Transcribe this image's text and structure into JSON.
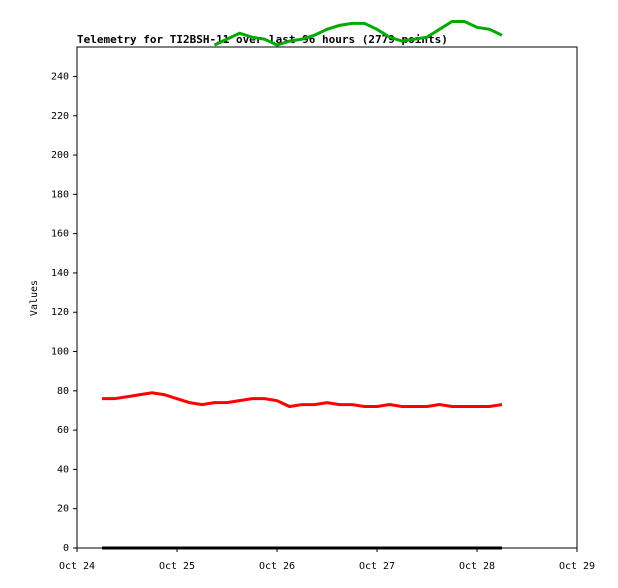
{
  "chart_data": {
    "type": "line",
    "title": "Telemetry for TI2BSH-11 over last 96 hours (2779 points)",
    "y_label": "Values",
    "x": [
      0.25,
      0.375,
      0.5,
      0.625,
      0.75,
      0.875,
      1.0,
      1.125,
      1.25,
      1.375,
      1.5,
      1.625,
      1.75,
      1.875,
      2.0,
      2.125,
      2.25,
      2.375,
      2.5,
      2.625,
      2.75,
      2.875,
      3.0,
      3.125,
      3.25,
      3.375,
      3.5,
      3.625,
      3.75,
      3.875,
      4.0,
      4.125,
      4.25
    ],
    "series": [
      {
        "color": "#ff0000",
        "values": [
          76,
          76,
          77,
          78,
          79,
          78,
          76,
          74,
          73,
          74,
          74,
          75,
          76,
          76,
          75,
          72,
          73,
          73,
          74,
          73,
          73,
          72,
          72,
          73,
          72,
          72,
          72,
          73,
          72,
          72,
          72,
          72,
          73
        ]
      },
      {
        "color": "#00aa00",
        "values": [
          null,
          null,
          null,
          null,
          null,
          null,
          null,
          null,
          null,
          256,
          259,
          262,
          260,
          259,
          256,
          258,
          259,
          261,
          264,
          266,
          267,
          267,
          264,
          260,
          258,
          259,
          260,
          264,
          268,
          268,
          265,
          264,
          261
        ]
      },
      {
        "color": "#000000",
        "values": [
          0,
          0,
          0,
          0,
          0,
          0,
          0,
          0,
          0,
          0,
          0,
          0,
          0,
          0,
          0,
          0,
          0,
          0,
          0,
          0,
          0,
          0,
          0,
          0,
          0,
          0,
          0,
          0,
          0,
          0,
          0,
          0,
          0
        ]
      }
    ],
    "xlim": [
      0,
      5
    ],
    "xticks": [
      {
        "value": 0,
        "label": "Oct 24"
      },
      {
        "value": 1,
        "label": "Oct 25"
      },
      {
        "value": 2,
        "label": "Oct 26"
      },
      {
        "value": 3,
        "label": "Oct 27"
      },
      {
        "value": 4,
        "label": "Oct 28"
      },
      {
        "value": 5,
        "label": "Oct 29"
      }
    ],
    "ylim": [
      0,
      255
    ],
    "yticks": [
      0,
      20,
      40,
      60,
      80,
      100,
      120,
      140,
      160,
      180,
      200,
      220,
      240
    ]
  }
}
